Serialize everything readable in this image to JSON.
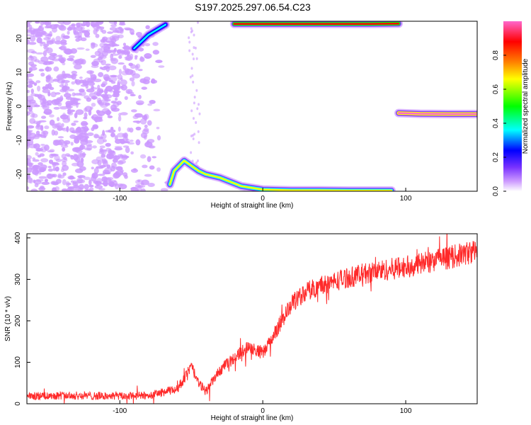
{
  "chart_data": [
    {
      "type": "heatmap",
      "title": "S197.2025.297.06.54.C23",
      "xlabel": "Height of straight line (km)",
      "ylabel": "Frequency (Hz)",
      "xlim": [
        -165,
        150
      ],
      "ylim": [
        -25,
        25
      ],
      "xticks": [
        -100,
        0,
        100
      ],
      "yticks": [
        -20,
        -10,
        0,
        10,
        20
      ],
      "colorbar": {
        "label": "Normalized spectral amplitude",
        "range": [
          0,
          1
        ],
        "ticks": [
          "0.0",
          "0.2",
          "0.4",
          "0.6",
          "0.8"
        ],
        "colors": [
          "#ffffff",
          "#cc99ff",
          "#7a33ff",
          "#0000ff",
          "#00ffff",
          "#00ff00",
          "#ffff00",
          "#ff8000",
          "#ff0000",
          "#ff66cc"
        ]
      },
      "features": [
        {
          "name": "noise-region",
          "x_range": [
            -165,
            -65
          ],
          "y_range": [
            -25,
            25
          ],
          "level": 0.1
        },
        {
          "name": "rising-diagonal-upper",
          "points": [
            [
              -90,
              17
            ],
            [
              -80,
              21
            ],
            [
              -68,
              24
            ]
          ],
          "level": 0.4
        },
        {
          "name": "descending-arc-lower",
          "points": [
            [
              -65,
              -23
            ],
            [
              -62,
              -19
            ],
            [
              -55,
              -16
            ],
            [
              -45,
              -19
            ],
            [
              -40,
              -20
            ],
            [
              -30,
              -21
            ],
            [
              -15,
              -23.5
            ],
            [
              0,
              -24.5
            ],
            [
              20,
              -24.7
            ],
            [
              40,
              -24.7
            ],
            [
              60,
              -24.8
            ],
            [
              90,
              -24.8
            ]
          ],
          "level": 0.7
        },
        {
          "name": "upper-right-band",
          "points": [
            [
              -20,
              24.2
            ],
            [
              0,
              24.2
            ],
            [
              40,
              24.2
            ],
            [
              75,
              24.2
            ],
            [
              95,
              24.3
            ]
          ],
          "level": 0.85
        },
        {
          "name": "horizontal-line-minus2hz",
          "points": [
            [
              95,
              -2
            ],
            [
              110,
              -2.2
            ],
            [
              130,
              -2.3
            ],
            [
              150,
              -2.3
            ]
          ],
          "level": 0.95
        }
      ]
    },
    {
      "type": "line",
      "xlabel": "Height of straight line (km)",
      "ylabel": "SNR (10 * v/v)",
      "xlim": [
        -165,
        150
      ],
      "ylim": [
        0,
        410
      ],
      "xticks": [
        -100,
        0,
        100
      ],
      "yticks": [
        0,
        100,
        200,
        300,
        400
      ],
      "series": [
        {
          "name": "SNR",
          "color": "#ff2a2a",
          "x": [
            -165,
            -140,
            -120,
            -100,
            -80,
            -60,
            -55,
            -50,
            -45,
            -40,
            -30,
            -20,
            -10,
            0,
            10,
            20,
            30,
            40,
            50,
            60,
            80,
            100,
            120,
            140,
            150
          ],
          "values": [
            18,
            20,
            19,
            18,
            20,
            35,
            60,
            90,
            50,
            30,
            80,
            110,
            140,
            120,
            180,
            240,
            270,
            285,
            295,
            305,
            320,
            330,
            345,
            360,
            370
          ],
          "noise": 22
        }
      ]
    }
  ]
}
